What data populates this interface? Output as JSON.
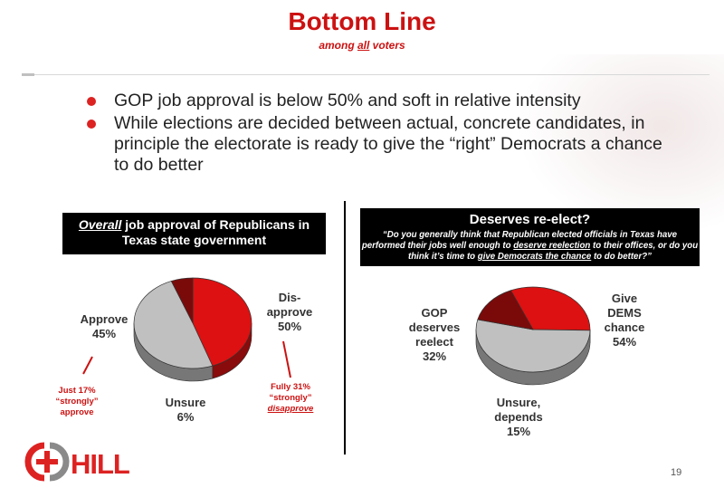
{
  "header": {
    "title": "Bottom Line",
    "subtitle_prefix": "among ",
    "subtitle_emph": "all",
    "subtitle_suffix": " voters"
  },
  "bullets": [
    "GOP job approval is below 50% and soft in relative intensity",
    "While elections are decided between actual, concrete candidates, in principle the electorate is ready to give the “right” Democrats a chance to do better"
  ],
  "left_panel": {
    "heading_emph": "Overall",
    "heading_rest": " job approval of Republicans in Texas state government",
    "labels": {
      "approve": [
        "Approve",
        "45%"
      ],
      "disapprove": [
        "Dis-",
        "approve",
        "50%"
      ],
      "unsure": [
        "Unsure",
        "6%"
      ]
    },
    "notes": {
      "approve": [
        "Just 17%",
        "“strongly”",
        "approve"
      ],
      "disapprove": [
        "Fully 31%",
        "“strongly”",
        "disapprove"
      ]
    }
  },
  "right_panel": {
    "heading": "Deserves re-elect?",
    "question_a": "“Do you generally think that Republican elected officials in Texas have performed their jobs well enough to ",
    "question_u1": "deserve reelection",
    "question_b": " to their offices, or do you think it’s time to ",
    "question_u2": "give Democrats the chance",
    "question_c": " to do better?”",
    "labels": {
      "gop": [
        "GOP",
        "deserves",
        "reelect",
        "32%"
      ],
      "dems": [
        "Give",
        "DEMS",
        "chance",
        "54%"
      ],
      "unsure": [
        "Unsure,",
        "depends",
        "15%"
      ]
    }
  },
  "chart_data": [
    {
      "type": "pie",
      "title": "Overall job approval of Republicans in Texas state government",
      "categories": [
        "Approve",
        "Disapprove",
        "Unsure"
      ],
      "values": [
        45,
        50,
        6
      ],
      "colors": [
        "#dd1111",
        "#c0c0c0",
        "#7a0a0a"
      ]
    },
    {
      "type": "pie",
      "title": "Deserves re-elect?",
      "categories": [
        "GOP deserves reelect",
        "Give DEMS chance",
        "Unsure, depends"
      ],
      "values": [
        32,
        54,
        15
      ],
      "colors": [
        "#dd1111",
        "#c0c0c0",
        "#7a0a0a"
      ]
    }
  ],
  "footer": {
    "logo_text": "HILL",
    "page_number": "19"
  }
}
